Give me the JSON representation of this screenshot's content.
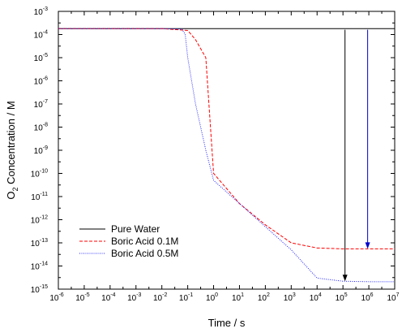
{
  "chart_data": {
    "type": "line",
    "title": "",
    "xlabel": "Time / s",
    "ylabel_main": "O",
    "ylabel_sub": "2",
    "ylabel_rest": " Concentration / M",
    "xscale": "log",
    "yscale": "log",
    "xlim": [
      1e-06,
      10000000.0
    ],
    "ylim": [
      1e-15,
      0.001
    ],
    "x_tick_exponents": [
      -6,
      -5,
      -4,
      -3,
      -2,
      -1,
      0,
      1,
      2,
      3,
      4,
      5,
      6,
      7
    ],
    "y_tick_exponents": [
      -15,
      -14,
      -13,
      -12,
      -11,
      -10,
      -9,
      -8,
      -7,
      -6,
      -5,
      -4,
      -3
    ],
    "tick_base": "10",
    "grid": false,
    "legend_position": "bottom-left",
    "series": [
      {
        "name": "Pure Water",
        "color": "#000000",
        "style": "solid",
        "x": [
          1e-06,
          0.001,
          1,
          1000.0,
          100000.0,
          10000000.0
        ],
        "y": [
          0.00018,
          0.00018,
          0.00018,
          0.00018,
          0.00018,
          0.00018
        ]
      },
      {
        "name": "Boric Acid 0.1M",
        "color": "#ff0000",
        "style": "dashed",
        "x": [
          1e-06,
          0.01,
          0.1,
          0.2,
          0.5,
          1,
          10,
          100,
          1000.0,
          10000.0,
          100000.0,
          1000000.0,
          10000000.0
        ],
        "y": [
          0.00018,
          0.00018,
          0.00015,
          6e-05,
          1e-05,
          1e-10,
          5e-12,
          6e-13,
          1e-13,
          6e-14,
          5.5e-14,
          5.5e-14,
          5.5e-14
        ]
      },
      {
        "name": "Boric Acid 0.5M",
        "color": "#2222ff",
        "style": "dotted",
        "x": [
          1e-06,
          0.01,
          0.06,
          0.08,
          0.1,
          0.2,
          0.5,
          1,
          10,
          100,
          1000.0,
          10000.0,
          100000.0,
          1000000.0,
          10000000.0
        ],
        "y": [
          0.00018,
          0.00018,
          0.00017,
          0.0001,
          1e-05,
          1e-07,
          1e-09,
          5e-11,
          5e-12,
          5e-13,
          5e-14,
          3e-15,
          2.2e-15,
          2.1e-15,
          2.1e-15
        ]
      }
    ],
    "annotations": [
      {
        "type": "arrow",
        "color": "#000000",
        "x": 120000.0,
        "y_from": 0.00016,
        "y_to": 2.2e-15
      },
      {
        "type": "arrow",
        "color": "#0000cc",
        "x": 900000.0,
        "y_from": 0.00016,
        "y_to": 5.5e-14
      }
    ]
  }
}
